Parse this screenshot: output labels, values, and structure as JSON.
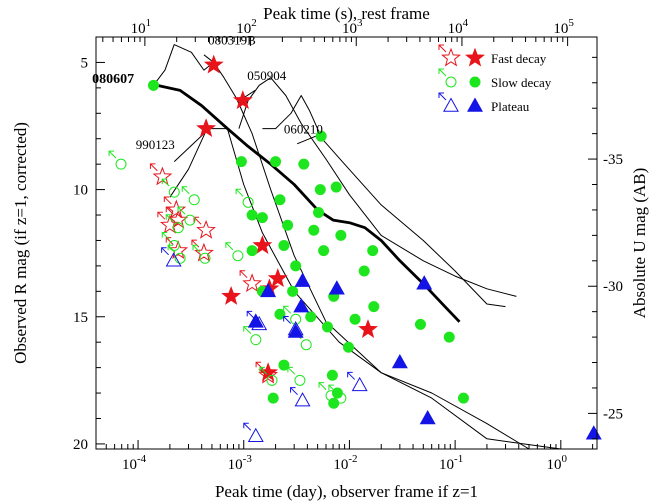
{
  "chart_data": {
    "type": "scatter",
    "xlabel": "Peak time (day), observer frame if z=1",
    "x2label": "Peak time (s), rest frame",
    "ylabel": "Observed R mag (if z=1, corrected)",
    "y2label": "Absolute U mag (AB)",
    "xscale": "log",
    "xlim": [
      4e-05,
      2.2
    ],
    "ylim": [
      20.2,
      4.0
    ],
    "x_ticks": [
      {
        "value": 0.0001,
        "base": "10",
        "exp": "-4"
      },
      {
        "value": 0.001,
        "base": "10",
        "exp": "-3"
      },
      {
        "value": 0.01,
        "base": "10",
        "exp": "-2"
      },
      {
        "value": 0.1,
        "base": "10",
        "exp": "-1"
      },
      {
        "value": 1,
        "base": "10",
        "exp": "0"
      }
    ],
    "x2_ticks": [
      {
        "value": 0.000116,
        "base": "10",
        "exp": "1"
      },
      {
        "value": 0.00116,
        "base": "10",
        "exp": "2"
      },
      {
        "value": 0.0116,
        "base": "10",
        "exp": "3"
      },
      {
        "value": 0.116,
        "base": "10",
        "exp": "4"
      },
      {
        "value": 1.16,
        "base": "10",
        "exp": "5"
      }
    ],
    "y_ticks": [
      5,
      10,
      15,
      20
    ],
    "y_tick_labels": [
      "5",
      "10",
      "15",
      "20"
    ],
    "y2_ticks": [
      {
        "y": 8.8,
        "label": "-35"
      },
      {
        "y": 13.8,
        "label": "-30"
      },
      {
        "y": 18.8,
        "label": "-25"
      }
    ],
    "legend": {
      "placement": "top-right",
      "entries": [
        {
          "label": "Fast decay",
          "marker": "star",
          "color": "#e8141b"
        },
        {
          "label": "Slow decay",
          "marker": "circle",
          "color": "#1ee61e"
        },
        {
          "label": "Plateau",
          "marker": "triangle",
          "color": "#1414e6"
        }
      ]
    },
    "annotations": [
      {
        "text": "080607",
        "x": 3.68e-05,
        "y": 5.8,
        "bold": true
      },
      {
        "text": "080319B",
        "x": 0.00046,
        "y": 4.3,
        "bold": false
      },
      {
        "text": "050904",
        "x": 0.00108,
        "y": 5.7,
        "bold": false
      },
      {
        "text": "060210",
        "x": 0.0024,
        "y": 7.8,
        "bold": false
      },
      {
        "text": "990123",
        "x": 9.5e-05,
        "y": 8.4,
        "bold": false
      }
    ],
    "series": [
      {
        "name": "Fast decay",
        "marker": "star",
        "color": "#e8141b",
        "filled": [
          [
            0.00052,
            5.1
          ],
          [
            0.00044,
            7.6
          ],
          [
            0.00098,
            6.5
          ],
          [
            0.0015,
            12.2
          ],
          [
            0.0021,
            13.5
          ],
          [
            0.00076,
            14.2
          ],
          [
            0.00175,
            13.9
          ],
          [
            0.0017,
            17.2
          ],
          [
            0.015,
            15.5
          ]
        ],
        "open": [
          [
            0.00017,
            9.5
          ],
          [
            0.00023,
            10.8
          ],
          [
            0.00024,
            11.2
          ],
          [
            0.0002,
            11.4
          ],
          [
            0.00024,
            12.4
          ],
          [
            0.00044,
            11.6
          ],
          [
            0.00042,
            12.5
          ],
          [
            0.0012,
            13.7
          ],
          [
            0.0017,
            17.3
          ]
        ]
      },
      {
        "name": "Slow decay",
        "marker": "circle",
        "color": "#1ee61e",
        "filled": [
          [
            0.00014,
            5.9
          ],
          [
            0.0054,
            7.9
          ],
          [
            0.00095,
            8.9
          ],
          [
            0.002,
            8.9
          ],
          [
            0.0037,
            9.0
          ],
          [
            0.0053,
            10.0
          ],
          [
            0.0075,
            9.9
          ],
          [
            0.0022,
            10.4
          ],
          [
            0.0051,
            10.9
          ],
          [
            0.0012,
            11.0
          ],
          [
            0.0015,
            11.1
          ],
          [
            0.0026,
            11.4
          ],
          [
            0.0024,
            12.2
          ],
          [
            0.0046,
            11.6
          ],
          [
            0.0083,
            11.8
          ],
          [
            0.0166,
            12.4
          ],
          [
            0.0012,
            12.4
          ],
          [
            0.0031,
            13.0
          ],
          [
            0.0057,
            12.4
          ],
          [
            0.0015,
            14.0
          ],
          [
            0.0029,
            14.0
          ],
          [
            0.0071,
            14.2
          ],
          [
            0.0022,
            14.9
          ],
          [
            0.0043,
            15.0
          ],
          [
            0.0062,
            15.4
          ],
          [
            0.0138,
            13.2
          ],
          [
            0.017,
            14.6
          ],
          [
            0.047,
            15.3
          ],
          [
            0.088,
            15.8
          ],
          [
            0.12,
            18.2
          ],
          [
            0.0098,
            16.2
          ],
          [
            0.0024,
            16.9
          ],
          [
            0.0069,
            17.3
          ],
          [
            0.0077,
            18.0
          ],
          [
            0.0071,
            18.4
          ],
          [
            0.0113,
            15.1
          ],
          [
            0.0019,
            18.2
          ]
        ],
        "open": [
          [
            6.9e-05,
            9.0
          ],
          [
            0.00022,
            10.1
          ],
          [
            0.00034,
            10.4
          ],
          [
            0.00031,
            11.2
          ],
          [
            0.00024,
            11.5
          ],
          [
            0.00022,
            12.2
          ],
          [
            0.00025,
            12.7
          ],
          [
            0.00043,
            12.7
          ],
          [
            0.00088,
            12.6
          ],
          [
            0.0011,
            10.5
          ],
          [
            0.0013,
            15.9
          ],
          [
            0.00185,
            17.5
          ],
          [
            0.0031,
            15.1
          ],
          [
            0.0034,
            17.5
          ],
          [
            0.0039,
            16.1
          ],
          [
            0.0067,
            18.1
          ],
          [
            0.0083,
            18.2
          ]
        ]
      },
      {
        "name": "Plateau",
        "marker": "triangle",
        "color": "#1414e6",
        "filled": [
          [
            0.0036,
            13.6
          ],
          [
            0.0076,
            13.9
          ],
          [
            0.0017,
            14.0
          ],
          [
            0.0035,
            14.6
          ],
          [
            0.0031,
            15.6
          ],
          [
            0.0013,
            15.2
          ],
          [
            0.051,
            13.7
          ],
          [
            0.03,
            16.8
          ],
          [
            0.055,
            19.0
          ],
          [
            2.05,
            19.6
          ]
        ],
        "open": [
          [
            0.000217,
            12.8
          ],
          [
            0.0014,
            15.3
          ],
          [
            0.0031,
            15.5
          ],
          [
            0.0036,
            18.3
          ],
          [
            0.0125,
            17.7
          ],
          [
            0.0013,
            19.7
          ]
        ]
      }
    ],
    "lines": [
      {
        "name": "080607",
        "style": "thick",
        "points": [
          [
            0.00015,
            5.9
          ],
          [
            0.00025,
            6.1
          ],
          [
            0.0004,
            6.7
          ],
          [
            0.0007,
            7.6
          ],
          [
            0.0011,
            8.3
          ],
          [
            0.0018,
            9.0
          ],
          [
            0.003,
            9.8
          ],
          [
            0.005,
            10.8
          ],
          [
            0.007,
            11.2
          ],
          [
            0.01,
            11.3
          ],
          [
            0.014,
            11.5
          ],
          [
            0.02,
            12.0
          ],
          [
            0.03,
            12.8
          ],
          [
            0.05,
            13.7
          ],
          [
            0.08,
            14.6
          ],
          [
            0.11,
            15.2
          ]
        ]
      },
      {
        "name": "080319B",
        "style": "thin",
        "points": [
          [
            0.00014,
            5.9
          ],
          [
            0.00018,
            5.3
          ],
          [
            0.00022,
            4.3
          ],
          [
            0.00032,
            4.6
          ],
          [
            0.00042,
            5.3
          ],
          [
            0.00052,
            5.0
          ],
          [
            0.00065,
            5.6
          ],
          [
            0.00085,
            6.4
          ],
          [
            0.0012,
            7.8
          ],
          [
            0.0018,
            10.0
          ],
          [
            0.003,
            12.6
          ],
          [
            0.006,
            15.2
          ],
          [
            0.02,
            17.2
          ],
          [
            0.06,
            18.2
          ],
          [
            0.2,
            19.8
          ],
          [
            1.0,
            20.2
          ]
        ]
      },
      {
        "name": "050904",
        "style": "thin",
        "points": [
          [
            0.0009,
            7.6
          ],
          [
            0.0011,
            6.5
          ],
          [
            0.0014,
            5.9
          ],
          [
            0.0018,
            5.6
          ],
          [
            0.0025,
            6.3
          ],
          [
            0.0035,
            7.4
          ],
          [
            0.006,
            8.8
          ],
          [
            0.01,
            10.2
          ],
          [
            0.02,
            11.8
          ],
          [
            0.05,
            12.8
          ],
          [
            0.1,
            13.4
          ],
          [
            0.2,
            13.9
          ],
          [
            0.38,
            14.2
          ]
        ]
      },
      {
        "name": "060210",
        "style": "thin",
        "points": [
          [
            0.0015,
            7.6
          ],
          [
            0.002,
            7.6
          ],
          [
            0.0028,
            7.0
          ],
          [
            0.0035,
            6.3
          ],
          [
            0.0042,
            6.9
          ],
          [
            0.0055,
            8.0
          ],
          [
            0.009,
            9.0
          ],
          [
            0.02,
            10.6
          ],
          [
            0.05,
            12.0
          ],
          [
            0.1,
            13.2
          ],
          [
            0.2,
            14.5
          ],
          [
            0.3,
            14.6
          ]
        ]
      },
      {
        "name": "990123",
        "style": "thin",
        "points": [
          [
            0.0002,
            10.3
          ],
          [
            0.0003,
            9.2
          ],
          [
            0.00045,
            7.6
          ],
          [
            0.0007,
            7.6
          ],
          [
            0.001,
            9.8
          ],
          [
            0.0015,
            11.7
          ],
          [
            0.003,
            14.0
          ],
          [
            0.008,
            16.0
          ],
          [
            0.02,
            17.2
          ],
          [
            0.06,
            18.0
          ],
          [
            0.2,
            19.2
          ],
          [
            0.5,
            20.2
          ]
        ]
      }
    ],
    "leaders": [
      {
        "from": [
          0.00042,
          4.7
        ],
        "to": [
          0.00052,
          5.0
        ]
      },
      {
        "from": [
          0.00128,
          6.1
        ],
        "to": [
          0.00099,
          6.4
        ]
      },
      {
        "from": [
          0.0032,
          8.2
        ],
        "to": [
          0.0048,
          7.9
        ]
      },
      {
        "from": [
          0.00022,
          8.9
        ],
        "to": [
          0.00042,
          7.8
        ]
      }
    ]
  }
}
